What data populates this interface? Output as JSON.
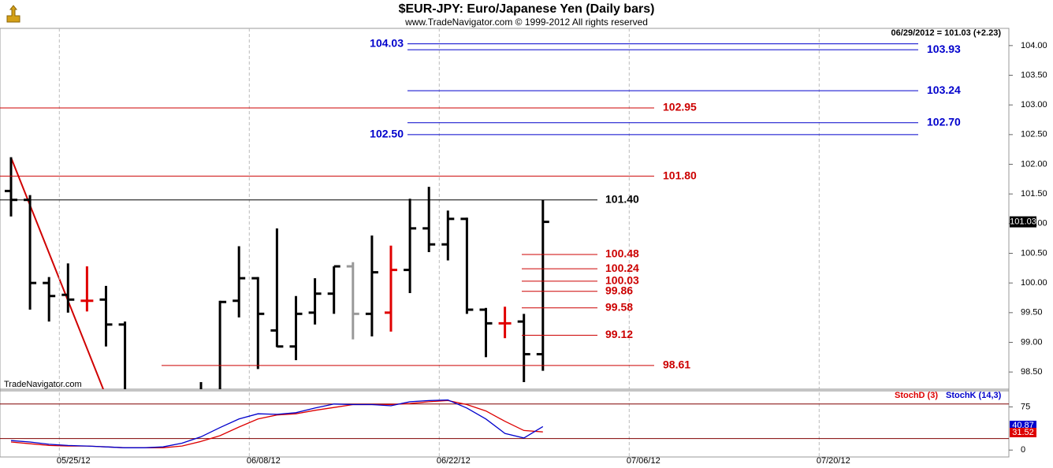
{
  "chart_data": [
    {
      "type": "ohlc",
      "title": "$EUR-JPY:  Euro/Japanese Yen  (Daily bars)",
      "subtitle": "www.TradeNavigator.com © 1999-2012 All rights reserved",
      "info": "06/29/2012 = 101.03 (+2.23)",
      "watermark": "TradeNavigator.com",
      "ylim": [
        98.21,
        104.29
      ],
      "yticks": [
        {
          "value": 98.5,
          "label": "98.50"
        },
        {
          "value": 99,
          "label": "99.00"
        },
        {
          "value": 99.5,
          "label": "99.50"
        },
        {
          "value": 100,
          "label": "100.00"
        },
        {
          "value": 100.5,
          "label": "100.50"
        },
        {
          "value": 101,
          "label": "101.00"
        },
        {
          "value": 101.5,
          "label": "101.50"
        },
        {
          "value": 102,
          "label": "102.00"
        },
        {
          "value": 102.5,
          "label": "102.50"
        },
        {
          "value": 103,
          "label": "103.00"
        },
        {
          "value": 103.5,
          "label": "103.50"
        },
        {
          "value": 104,
          "label": "104.00"
        }
      ],
      "xlim": [
        -0.58,
        52.53
      ],
      "xticks": [
        {
          "value": 3,
          "label": "05/25/12"
        },
        {
          "value": 13,
          "label": "06/08/12"
        },
        {
          "value": 23,
          "label": "06/22/12"
        },
        {
          "value": 33,
          "label": "07/06/12"
        },
        {
          "value": 43,
          "label": "07/20/12"
        }
      ],
      "grid": true,
      "colors": [
        "#000000",
        "#000000",
        "#000000",
        "#000000",
        "#e00000",
        "#000000",
        "#000000",
        "#000000",
        "#000000",
        "#000000",
        "#000000",
        "#000000",
        "#000000",
        "#000000",
        "#000000",
        "#000000",
        "#000000",
        "#000000",
        "#999999",
        "#000000",
        "#e00000",
        "#000000",
        "#000000",
        "#000000",
        "#000000",
        "#000000",
        "#e00000",
        "#000000",
        "#000000"
      ],
      "open": [
        101.55,
        101.4,
        100.0,
        99.8,
        99.7,
        99.72,
        99.3,
        null,
        null,
        null,
        null,
        null,
        99.7,
        100.08,
        99.2,
        98.93,
        99.5,
        99.82,
        100.28,
        99.48,
        99.5,
        100.22,
        100.92,
        100.65,
        101.08,
        99.55,
        99.32,
        99.35,
        98.8
      ],
      "high": [
        102.12,
        101.48,
        100.1,
        100.33,
        100.28,
        99.95,
        99.35,
        null,
        null,
        null,
        98.33,
        99.7,
        100.62,
        100.1,
        100.92,
        99.78,
        100.08,
        100.28,
        100.35,
        100.8,
        100.63,
        101.42,
        101.62,
        101.22,
        101.1,
        99.58,
        99.6,
        99.48,
        101.4
      ],
      "low": [
        101.12,
        99.55,
        99.35,
        99.5,
        99.52,
        98.93,
        null,
        null,
        null,
        null,
        null,
        null,
        99.42,
        98.55,
        98.92,
        98.7,
        99.3,
        99.48,
        99.05,
        99.1,
        99.18,
        99.83,
        100.52,
        100.38,
        99.48,
        98.75,
        99.07,
        98.33,
        98.52
      ],
      "close": [
        101.4,
        100.0,
        99.78,
        99.72,
        99.7,
        99.3,
        null,
        null,
        null,
        null,
        null,
        99.68,
        100.08,
        99.48,
        98.93,
        99.48,
        99.82,
        100.28,
        99.48,
        100.18,
        100.22,
        100.92,
        100.65,
        101.08,
        99.55,
        99.32,
        99.32,
        98.8,
        101.03
      ],
      "levels": [
        {
          "value": 104.03,
          "color": "#0000cc"
        },
        {
          "value": 103.93,
          "color": "#0000cc"
        },
        {
          "value": 103.24,
          "color": "#0000cc"
        },
        {
          "value": 102.7,
          "label": "102.70",
          "color": "#0000cc"
        },
        {
          "value": 102.5,
          "label": "102.50",
          "color": "#0000cc"
        },
        {
          "value": 102.95,
          "color": "#cc0000"
        },
        {
          "value": 101.8,
          "label": "101.80",
          "color": "#cc0000"
        },
        {
          "value": 101.4,
          "label": "101.40",
          "color": "#000000"
        },
        {
          "value": 100.48,
          "color": "#cc0000"
        },
        {
          "value": 100.24,
          "color": "#cc0000"
        },
        {
          "value": 100.03,
          "color": "#cc0000"
        },
        {
          "value": 99.86,
          "color": "#cc0000"
        },
        {
          "value": 99.58,
          "color": "#cc0000"
        },
        {
          "value": 99.12,
          "color": "#cc0000"
        },
        {
          "value": 98.61,
          "color": "#cc0000"
        }
      ]
    },
    {
      "type": "line",
      "ylim": [
        -12,
        103
      ],
      "yticks": [
        0,
        75
      ],
      "ref_lines": [
        20,
        80
      ],
      "series": [
        {
          "name": "StochD (3)",
          "color": "#dd0000",
          "values": [
            14,
            11,
            8,
            7,
            7,
            5.5,
            4,
            4,
            4,
            7,
            15,
            25,
            40,
            54,
            61,
            63,
            69,
            74,
            79,
            79,
            79,
            81,
            84,
            86,
            79,
            68,
            50,
            34,
            31.52
          ]
        },
        {
          "name": "StochK (14,3)",
          "color": "#0000cc",
          "values": [
            16.5,
            14,
            10,
            8,
            7,
            5.5,
            4,
            4,
            5.5,
            12,
            23,
            39,
            54,
            63,
            62,
            65,
            73,
            80,
            79,
            79,
            77,
            84,
            86,
            87,
            73,
            54,
            29,
            21,
            40.87
          ]
        }
      ]
    }
  ]
}
